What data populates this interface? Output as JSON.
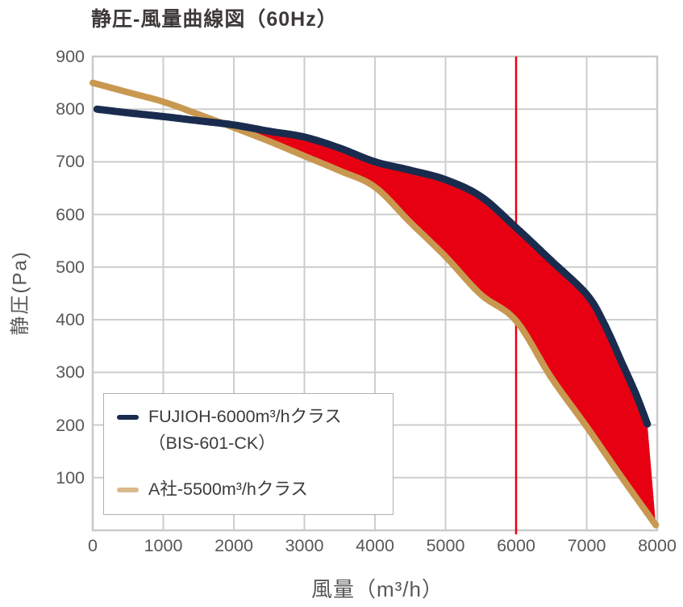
{
  "chart_data": {
    "type": "line",
    "title": "静圧-風量曲線図（60Hz）",
    "xlabel": "風量（m³/h）",
    "ylabel": "静圧(Pa)",
    "xlim": [
      0,
      8000
    ],
    "ylim": [
      0,
      900
    ],
    "x_ticks": [
      0,
      1000,
      2000,
      3000,
      4000,
      5000,
      6000,
      7000,
      8000
    ],
    "y_ticks": [
      100,
      200,
      300,
      400,
      500,
      600,
      700,
      800,
      900
    ],
    "grid": true,
    "reference_line": {
      "x": 6000,
      "color": "#e60012"
    },
    "series": [
      {
        "name": "FUJIOH-6000m³/hクラス（BIS-601-CK）",
        "color": "#1a2c4e",
        "line_width": 9,
        "points": [
          [
            60,
            800
          ],
          [
            500,
            793
          ],
          [
            1000,
            786
          ],
          [
            1500,
            778
          ],
          [
            2000,
            770
          ],
          [
            2500,
            758
          ],
          [
            3000,
            747
          ],
          [
            3500,
            726
          ],
          [
            4000,
            700
          ],
          [
            4500,
            684
          ],
          [
            5000,
            666
          ],
          [
            5500,
            634
          ],
          [
            6000,
            575
          ],
          [
            6500,
            512
          ],
          [
            7000,
            448
          ],
          [
            7250,
            392
          ],
          [
            7500,
            318
          ],
          [
            7700,
            258
          ],
          [
            7860,
            202
          ]
        ]
      },
      {
        "name": "A社-5500m³/hクラス",
        "color": "#c89850",
        "line_width": 8,
        "points": [
          [
            0,
            850
          ],
          [
            500,
            832
          ],
          [
            1000,
            814
          ],
          [
            1500,
            790
          ],
          [
            2000,
            765
          ],
          [
            2500,
            739
          ],
          [
            3000,
            711
          ],
          [
            3500,
            683
          ],
          [
            4000,
            652
          ],
          [
            4500,
            585
          ],
          [
            5000,
            520
          ],
          [
            5500,
            448
          ],
          [
            6000,
            398
          ],
          [
            6500,
            290
          ],
          [
            7000,
            197
          ],
          [
            7500,
            100
          ],
          [
            7980,
            10
          ]
        ]
      }
    ],
    "fill_between": {
      "upper_series": 0,
      "lower_series": 1,
      "color": "#e60012"
    },
    "legend": {
      "position": "lower-left",
      "entries": [
        {
          "line1": "FUJIOH-6000m³/hクラス",
          "line2": "（BIS-601-CK）",
          "swatch_color": "#1a2c4e"
        },
        {
          "line1": "A社-5500m³/hクラス",
          "swatch_color": "#d9b98c"
        }
      ]
    },
    "colors": {
      "grid": "#cdcdcd",
      "frame": "#c9caca",
      "tick_label": "#595757",
      "title": "#3e3a39",
      "legend_border": "#b0b0b1",
      "legend_text": "#3e3a39",
      "background": "#ffffff"
    }
  }
}
